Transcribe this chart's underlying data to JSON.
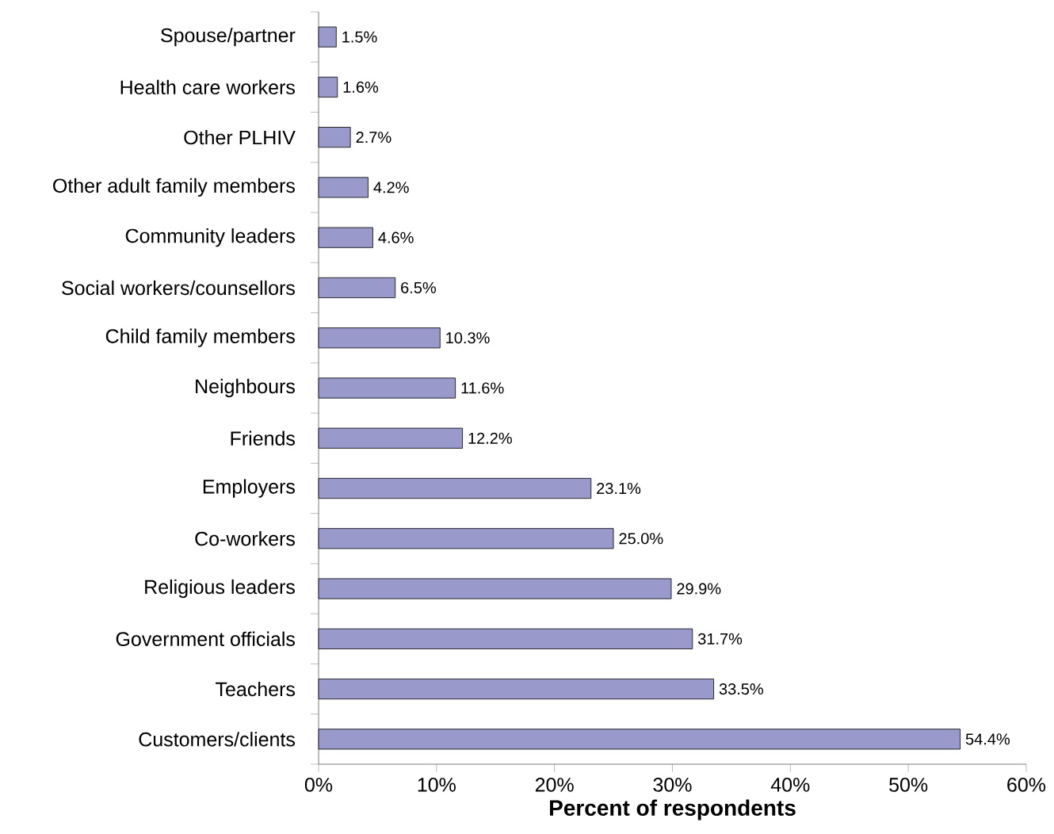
{
  "chart_data": {
    "type": "bar",
    "orientation": "horizontal",
    "xlabel": "Percent of respondents",
    "categories": [
      "Spouse/partner",
      "Health care workers",
      "Other PLHIV",
      "Other adult family members",
      "Community leaders",
      "Social workers/counsellors",
      "Child family members",
      "Neighbours",
      "Friends",
      "Employers",
      "Co-workers",
      "Religious leaders",
      "Government officials",
      "Teachers",
      "Customers/clients"
    ],
    "values": [
      1.5,
      1.6,
      2.7,
      4.2,
      4.6,
      6.5,
      10.3,
      11.6,
      12.2,
      23.1,
      25.0,
      29.9,
      31.7,
      33.5,
      54.4
    ],
    "value_labels": [
      "1.5%",
      "1.6%",
      "2.7%",
      "4.2%",
      "4.6%",
      "6.5%",
      "10.3%",
      "11.6%",
      "12.2%",
      "23.1%",
      "25.0%",
      "29.9%",
      "31.7%",
      "33.5%",
      "54.4%"
    ],
    "color": "#9999cc",
    "xlim": [
      0,
      60
    ],
    "xticks": [
      {
        "value": 0,
        "label": "0%"
      },
      {
        "value": 10,
        "label": "10%"
      },
      {
        "value": 20,
        "label": "20%"
      },
      {
        "value": 30,
        "label": "30%"
      },
      {
        "value": 40,
        "label": "40%"
      },
      {
        "value": 50,
        "label": "50%"
      },
      {
        "value": 60,
        "label": "60%"
      }
    ],
    "grid": false
  }
}
